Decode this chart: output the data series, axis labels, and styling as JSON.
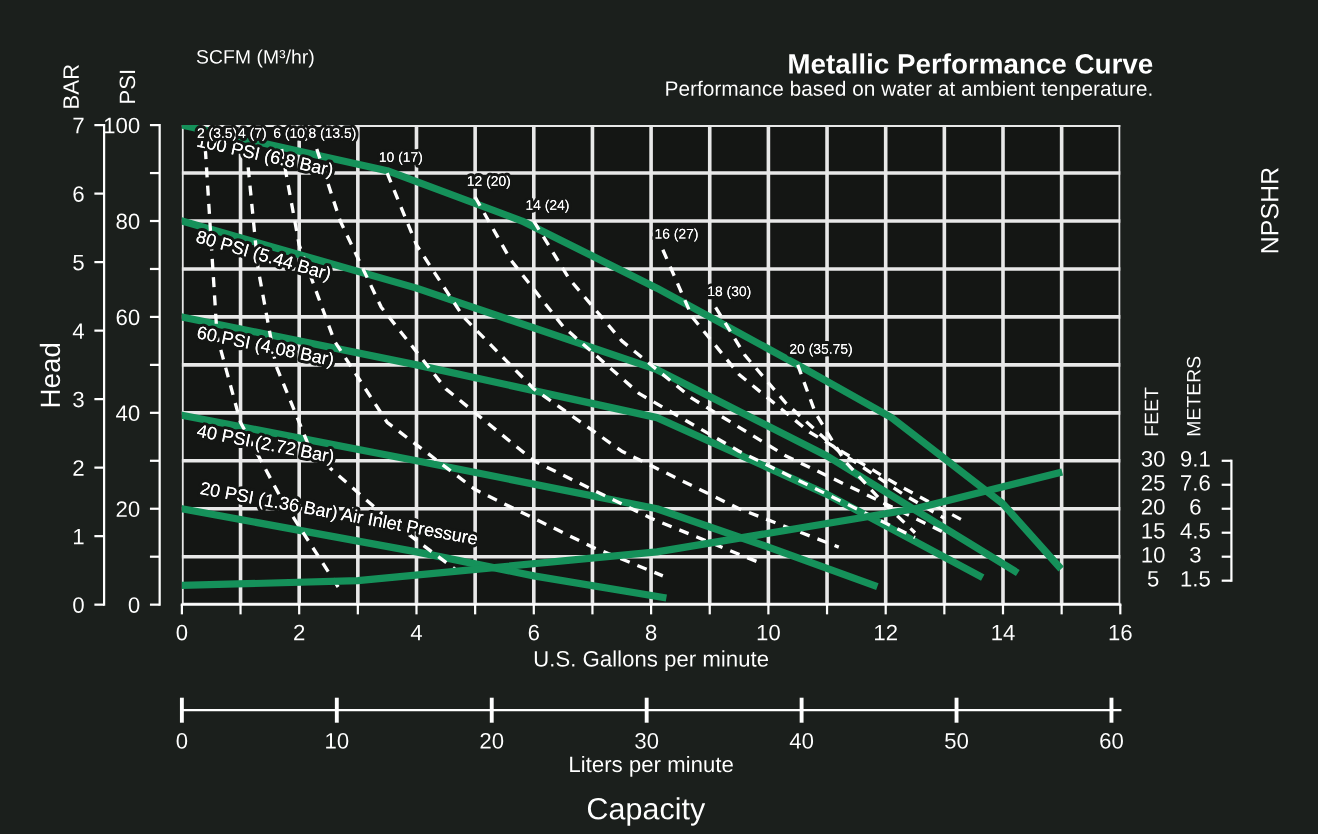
{
  "chart_data": {
    "type": "line",
    "title": "Metallic Performance Curve",
    "subtitle": "Performance based on water at ambient tenperature.",
    "xlabel": "U.S. Gallons per minute",
    "x2label": "Liters per minute",
    "ylabel": "PSI",
    "y2label": "BAR",
    "y3label": "FEET",
    "annotations": [
      "Head",
      "NPSHR",
      "Capacity",
      "SCFM (M³/hr)",
      "METERS",
      "1.5",
      "3",
      "4.5",
      "6",
      "7.6",
      "9.1"
    ],
    "xlim": [
      0,
      16
    ],
    "xticks": [
      0,
      {
        "value": 1,
        "label": null
      },
      2,
      {
        "value": 3,
        "label": null
      },
      4,
      {
        "value": 5,
        "label": null
      },
      6,
      {
        "value": 7,
        "label": null
      },
      8,
      {
        "value": 9,
        "label": null
      },
      10,
      {
        "value": 11,
        "label": null
      },
      12,
      {
        "value": 13,
        "label": null
      },
      14,
      {
        "value": 15,
        "label": null
      },
      16
    ],
    "x2lim": [
      0,
      60.57
    ],
    "x2ticks": [
      0,
      10,
      20,
      30,
      40,
      50,
      60
    ],
    "ylim": [
      0,
      100
    ],
    "yticks": [
      0,
      {
        "value": 10,
        "label": null
      },
      20,
      {
        "value": 30,
        "label": null
      },
      40,
      {
        "value": 50,
        "label": null
      },
      60,
      {
        "value": 70,
        "label": null
      },
      80,
      {
        "value": 90,
        "label": null
      },
      100
    ],
    "y2lim": [
      0,
      7
    ],
    "y2ticks": [
      0,
      1,
      2,
      3,
      4,
      5,
      6,
      7
    ],
    "y3lim": [
      0,
      100
    ],
    "y3ticks": [
      5,
      10,
      15,
      20,
      25,
      30
    ],
    "grid": true,
    "legend": false,
    "marker": "none",
    "series": [
      {
        "name": "100 PSI (6.8 Bar)",
        "color": "#15915a",
        "line_style": "solid",
        "x": [
          0,
          3.5,
          5.8,
          8.1,
          9.0,
          10.5,
          12.1,
          14.0,
          14.95
        ],
        "values": [
          100,
          90.5,
          80,
          66,
          60,
          50,
          39,
          21,
          8
        ]
      },
      {
        "name": "80 PSI (5.44 Bar)",
        "color": "#15915a",
        "line_style": "solid",
        "x": [
          0,
          4,
          8.1,
          11,
          14.2
        ],
        "values": [
          80,
          66,
          49,
          31,
          7
        ]
      },
      {
        "name": "60 PSI (4.08 Bar)",
        "color": "#15915a",
        "line_style": "solid",
        "x": [
          0,
          4,
          8.1,
          11,
          13.6
        ],
        "values": [
          60,
          50,
          39,
          23,
          6
        ]
      },
      {
        "name": "40 PSI (2.72 Bar)",
        "color": "#15915a",
        "line_style": "solid",
        "x": [
          0,
          4,
          8.1,
          10,
          11.8
        ],
        "values": [
          39.5,
          30,
          20,
          12,
          4
        ]
      },
      {
        "name": "20 PSI (1.36 Bar) Air Inlet Pressure",
        "color": "#15915a",
        "line_style": "solid",
        "x": [
          0,
          4,
          6,
          8.2
        ],
        "values": [
          20,
          11,
          6,
          1.5
        ]
      },
      {
        "color": "#15915a",
        "line_style": "solid",
        "axis": "y3",
        "x": [
          0,
          3,
          8.1,
          12.5,
          14.95
        ],
        "values": [
          4,
          5,
          11,
          20,
          27.5
        ]
      },
      {
        "name": "2 (3.5)",
        "color": "#ffffff",
        "line_style": "dashed",
        "x": [
          0.4,
          0.6,
          1.0,
          1.7,
          2.7
        ],
        "values": [
          95,
          56,
          38,
          22,
          3
        ]
      },
      {
        "name": "4 (7)",
        "color": "#ffffff",
        "line_style": "dashed",
        "x": [
          1.1,
          1.3,
          1.6,
          2.2,
          3.5,
          4.7
        ],
        "values": [
          95,
          70,
          50,
          32,
          18,
          7
        ]
      },
      {
        "name": "6 (10)",
        "color": "#ffffff",
        "line_style": "dashed",
        "x": [
          1.7,
          2.0,
          2.6,
          3.5,
          5,
          7,
          8.2
        ],
        "values": [
          95,
          75,
          55,
          38,
          24,
          12,
          6
        ]
      },
      {
        "name": "8 (13.5)",
        "color": "#ffffff",
        "line_style": "dashed",
        "x": [
          2.3,
          2.7,
          3.4,
          4.5,
          6,
          8,
          9.8
        ],
        "values": [
          95,
          80,
          62,
          45,
          30,
          18,
          9
        ]
      },
      {
        "name": "10 (17)",
        "color": "#ffffff",
        "line_style": "dashed",
        "x": [
          3.5,
          4.0,
          4.8,
          6,
          7.5,
          9.5,
          11.2
        ],
        "values": [
          90,
          75,
          60,
          45,
          32,
          20,
          12
        ]
      },
      {
        "name": "12 (20)",
        "color": "#ffffff",
        "line_style": "dashed",
        "x": [
          5.0,
          5.6,
          6.5,
          7.8,
          9.5,
          11.5,
          12.5
        ],
        "values": [
          85,
          72,
          58,
          44,
          32,
          20,
          14
        ]
      },
      {
        "name": "14 (24)",
        "color": "#ffffff",
        "line_style": "dashed",
        "x": [
          6.0,
          6.6,
          7.5,
          8.7,
          10.3,
          12,
          13
        ],
        "values": [
          80,
          68,
          55,
          43,
          31,
          21,
          15
        ]
      },
      {
        "name": "16 (27)",
        "color": "#ffffff",
        "line_style": "dashed",
        "x": [
          8.2,
          8.7,
          9.5,
          10.7,
          12.2,
          13.4
        ],
        "values": [
          74,
          60,
          48,
          36,
          25,
          17
        ]
      },
      {
        "name": "18 (30)",
        "color": "#ffffff",
        "line_style": "dashed",
        "x": [
          9.1,
          9.6,
          10.3,
          11.2,
          12.3,
          13.0
        ],
        "values": [
          62,
          52,
          42,
          32,
          23,
          18
        ]
      },
      {
        "name": "20 (35.75)",
        "color": "#ffffff",
        "line_style": "dashed",
        "x": [
          10.5,
          10.8,
          11.3,
          11.9,
          12.5
        ],
        "values": [
          50,
          40,
          30,
          22,
          15
        ]
      }
    ]
  }
}
